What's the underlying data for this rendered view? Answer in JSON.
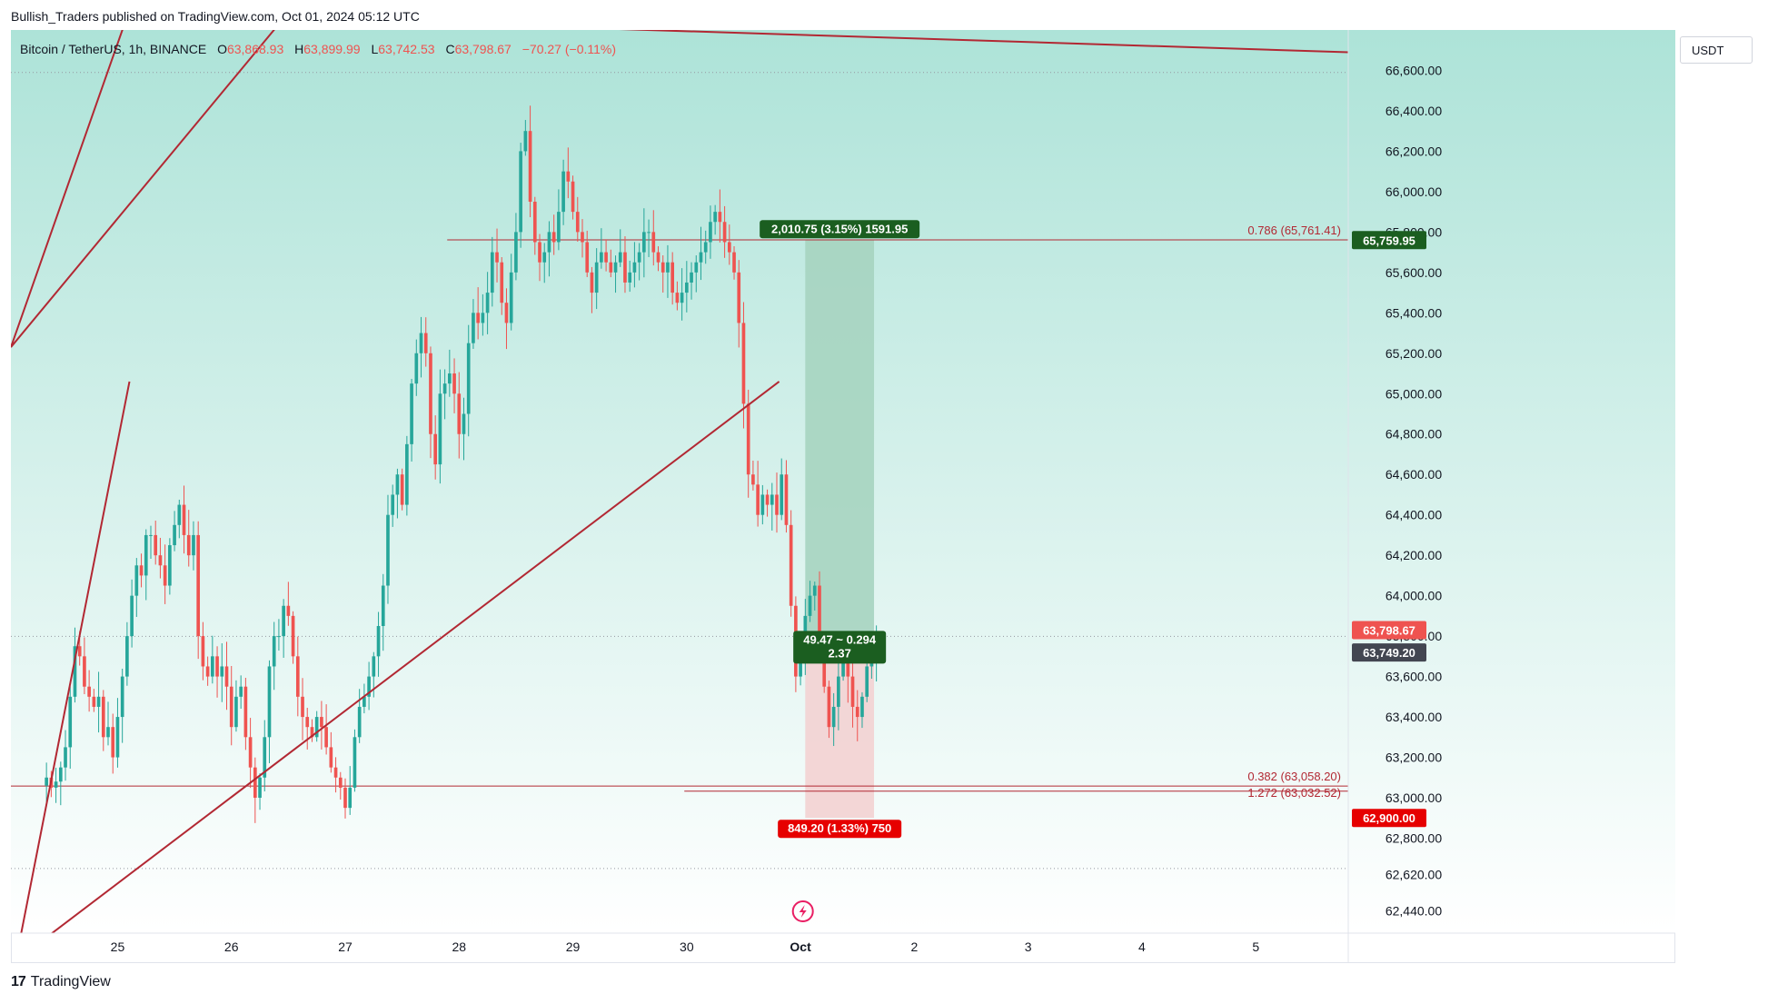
{
  "publisher_line": "Bullish_Traders published on TradingView.com, Oct 01, 2024 05:12 UTC",
  "symbol": {
    "title": "Bitcoin / TetherUS, 1h, BINANCE",
    "open_label": "O",
    "open": "63,868.93",
    "high_label": "H",
    "high": "63,899.99",
    "low_label": "L",
    "low": "63,742.53",
    "close_label": "C",
    "close": "63,798.67",
    "change": "−70.27 (−0.11%)"
  },
  "currency": "USDT",
  "footer": {
    "brand": "TradingView",
    "logo": "tradingview-logo-icon"
  },
  "colors": {
    "up": "#26a69a",
    "down": "#ef5350",
    "trendline": "#b22833",
    "profit_zone": "#a6d4c0",
    "loss_zone": "#f2d4d4",
    "bg_top": "#ade3d8",
    "bg_bottom": "#ffffff"
  },
  "chart_data": {
    "type": "candlestick",
    "timeframe": "1h",
    "ylim": [
      62330,
      66800
    ],
    "y_ticks": [
      "66,600.00",
      "66,400.00",
      "66,200.00",
      "66,000.00",
      "65,800.00",
      "65,600.00",
      "65,400.00",
      "65,200.00",
      "65,000.00",
      "64,800.00",
      "64,600.00",
      "64,400.00",
      "64,200.00",
      "64,000.00",
      "63,800.00",
      "63,600.00",
      "63,400.00",
      "63,200.00",
      "63,000.00",
      "62,800.00",
      "62,620.00",
      "62,440.00"
    ],
    "y_tick_values": [
      66600,
      66400,
      66200,
      66000,
      65800,
      65600,
      65400,
      65200,
      65000,
      64800,
      64600,
      64400,
      64200,
      64000,
      63800,
      63600,
      63400,
      63200,
      63000,
      62800,
      62620,
      62440
    ],
    "x_ticks": [
      {
        "label": "25",
        "bar": 0
      },
      {
        "label": "26",
        "bar": 24
      },
      {
        "label": "27",
        "bar": 48
      },
      {
        "label": "28",
        "bar": 72
      },
      {
        "label": "29",
        "bar": 96
      },
      {
        "label": "30",
        "bar": 120
      },
      {
        "label": "Oct",
        "bar": 144
      },
      {
        "label": "2",
        "bar": 168
      },
      {
        "label": "3",
        "bar": 192
      },
      {
        "label": "4",
        "bar": 216
      },
      {
        "label": "5",
        "bar": 240
      }
    ],
    "bar_range": [
      -22,
      260
    ],
    "close_series": [
      63100,
      63050,
      63080,
      63150,
      63250,
      63500,
      63750,
      63700,
      63550,
      63500,
      63450,
      63500,
      63300,
      63350,
      63200,
      63400,
      63600,
      63800,
      64000,
      64150,
      64100,
      64300,
      64300,
      64200,
      64150,
      64050,
      64250,
      64350,
      64450,
      64300,
      64200,
      64300,
      63800,
      63650,
      63600,
      63700,
      63600,
      63650,
      63550,
      63350,
      63500,
      63550,
      63300,
      63150,
      63000,
      63100,
      63300,
      63650,
      63800,
      63800,
      63950,
      63900,
      63700,
      63500,
      63400,
      63350,
      63300,
      63400,
      63350,
      63250,
      63150,
      63100,
      63050,
      62950,
      63050,
      63300,
      63450,
      63500,
      63600,
      63700,
      63850,
      64050,
      64400,
      64500,
      64600,
      64450,
      64750,
      65050,
      65200,
      65300,
      65200,
      64800,
      64650,
      65000,
      65050,
      65100,
      65000,
      64800,
      64900,
      65250,
      65400,
      65350,
      65400,
      65500,
      65700,
      65650,
      65450,
      65350,
      65600,
      65800,
      66200,
      66300,
      65950,
      65750,
      65650,
      65700,
      65800,
      65750,
      65900,
      66100,
      66050,
      65900,
      65800,
      65750,
      65600,
      65500,
      65650,
      65700,
      65650,
      65600,
      65650,
      65700,
      65550,
      65600,
      65650,
      65700,
      65800,
      65800,
      65700,
      65650,
      65600,
      65650,
      65500,
      65450,
      65500,
      65550,
      65600,
      65650,
      65700,
      65750,
      65850,
      65900,
      65850,
      65750,
      65700,
      65600,
      65350,
      64950,
      64600,
      64550,
      64400,
      64500,
      64450,
      64500,
      64400,
      64600,
      64350,
      63950,
      63600,
      63700,
      63900,
      64000,
      64050,
      63700,
      63550,
      63350,
      63450,
      63600,
      63700,
      63600,
      63450,
      63400,
      63500,
      63650,
      63700,
      63800
    ],
    "last_price": "63,798.67",
    "position": {
      "type": "long",
      "entry": 63749.2,
      "entry_label": "63,749.20",
      "target": 65759.95,
      "target_label": "65,759.95",
      "stop": 62900.0,
      "stop_label": "62,900.00",
      "profit_text": "2,010.75 (3.15%) 1591.95",
      "risk_text": "849.20 (1.33%) 750",
      "ratio_text_1": "49.47 ~ 0.294",
      "ratio_text_2": "2.37"
    },
    "fib_levels": [
      {
        "label": "0.786 (65,761.41)",
        "value": 65761.41
      },
      {
        "label": "0.382 (63,058.20)",
        "value": 63058.2
      },
      {
        "label": "1.272 (63,032.52)",
        "value": 63032.52
      }
    ],
    "support_level": 63058,
    "trendlines": [
      {
        "from": [
          -22,
          65230
        ],
        "to": [
          3,
          66900
        ]
      },
      {
        "from": [
          -22,
          66900
        ],
        "to": [
          260,
          66690
        ]
      },
      {
        "from": [
          -22,
          62070
        ],
        "to": [
          3,
          65060
        ]
      }
    ],
    "dotted_levels": [
      66590,
      63798.67,
      62650
    ],
    "alert_icon": "lightning-alert-icon"
  }
}
